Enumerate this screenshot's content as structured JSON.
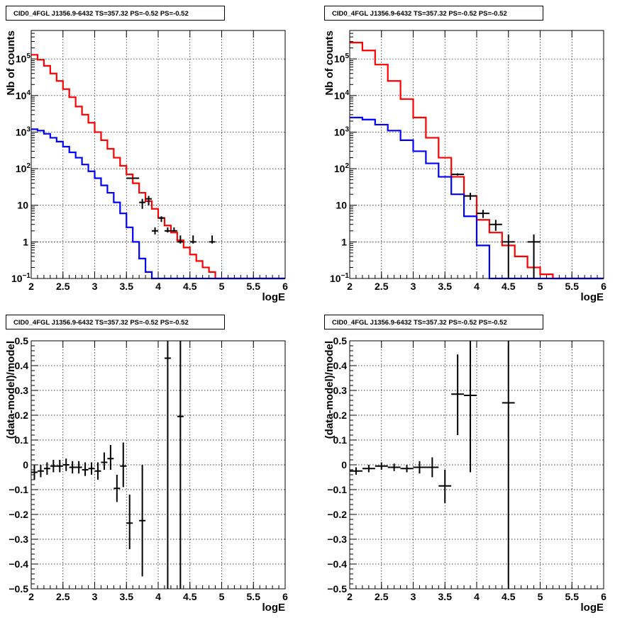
{
  "chart_data": [
    {
      "type": "line",
      "title": "CID0_4FGL J1356.9-6432 TS=357.32 PS=-0.52 PS=-0.52",
      "xlabel": "logE",
      "ylabel": "Nb of counts",
      "xlim": [
        2,
        6
      ],
      "ylim": [
        0.1,
        600000
      ],
      "yscale": "log",
      "grid": true,
      "xticks": [
        "2",
        "2.5",
        "3",
        "3.5",
        "4",
        "4.5",
        "5",
        "5.5",
        "6"
      ],
      "yticks": [
        {
          "v": 0.1,
          "label": "10",
          "sup": "−1"
        },
        {
          "v": 1,
          "label": "1",
          "sup": ""
        },
        {
          "v": 10,
          "label": "10",
          "sup": ""
        },
        {
          "v": 100,
          "label": "10",
          "sup": "2"
        },
        {
          "v": 1000,
          "label": "10",
          "sup": "3"
        },
        {
          "v": 10000,
          "label": "10",
          "sup": "4"
        },
        {
          "v": 100000,
          "label": "10",
          "sup": "5"
        }
      ],
      "series": [
        {
          "color": "#ff0000",
          "kind": "step",
          "edges": [
            2.0,
            2.1,
            2.2,
            2.3,
            2.4,
            2.5,
            2.6,
            2.7,
            2.8,
            2.9,
            3.0,
            3.1,
            3.2,
            3.3,
            3.4,
            3.5,
            3.6,
            3.7,
            3.8,
            3.9,
            4.0,
            4.1,
            4.2,
            4.3,
            4.4,
            4.5,
            4.6,
            4.7,
            4.8,
            4.9,
            5.0,
            5.1,
            5.2,
            5.3,
            5.4,
            5.5,
            5.6,
            5.7,
            5.8,
            5.9,
            6.0
          ],
          "values": [
            130000,
            95000,
            65000,
            40000,
            25000,
            15000,
            9000,
            5000,
            3000,
            1800,
            1000,
            600,
            350,
            200,
            120,
            70,
            40,
            22,
            13,
            8,
            4.5,
            2.8,
            1.8,
            1.1,
            0.7,
            0.45,
            0.3,
            0.2,
            0.15,
            0.1,
            0.1,
            0.1,
            0.1,
            0.1,
            0.1,
            0.1,
            0.1,
            0.1,
            0.1,
            0.1
          ]
        },
        {
          "color": "#0000ff",
          "kind": "step",
          "edges": [
            2.0,
            2.1,
            2.2,
            2.3,
            2.4,
            2.5,
            2.6,
            2.7,
            2.8,
            2.9,
            3.0,
            3.1,
            3.2,
            3.3,
            3.4,
            3.5,
            3.6,
            3.7,
            3.8,
            3.9,
            4.0,
            4.1,
            4.2,
            4.3,
            4.4,
            4.5,
            4.6,
            4.7,
            4.8,
            4.9,
            5.0,
            5.1,
            5.2,
            5.3,
            5.4,
            5.5,
            5.6,
            5.7,
            5.8,
            5.9,
            6.0
          ],
          "values": [
            1200,
            1100,
            900,
            700,
            550,
            400,
            280,
            200,
            130,
            85,
            55,
            35,
            22,
            12,
            6,
            2.5,
            1.0,
            0.35,
            0.15,
            0.1,
            0.1,
            0.1,
            0.1,
            0.1,
            0.1,
            0.1,
            0.1,
            0.1,
            0.1,
            0.1,
            0.1,
            0.1,
            0.1,
            0.1,
            0.1,
            0.1,
            0.1,
            0.1,
            0.1,
            0.1
          ]
        },
        {
          "color": "#000000",
          "kind": "errorbar",
          "xhalf": 0.05,
          "points": [
            [
              3.55,
              55,
              55,
              55
            ],
            [
              3.65,
              55,
              55,
              55
            ],
            [
              3.75,
              12,
              8,
              15
            ],
            [
              3.85,
              15,
              10,
              18
            ],
            [
              3.95,
              2,
              1.6,
              2.5
            ],
            [
              4.05,
              4.5,
              3.5,
              5
            ],
            [
              4.15,
              2,
              1.8,
              2.5
            ],
            [
              4.25,
              2,
              1.9,
              2.5
            ],
            [
              4.35,
              1,
              0.9,
              1.5
            ],
            [
              4.55,
              1,
              0.9,
              1.5
            ],
            [
              4.85,
              1,
              0.9,
              1.5
            ]
          ]
        }
      ]
    },
    {
      "type": "line",
      "title": "CID0_4FGL J1356.9-6432 TS=357.32 PS=-0.52 PS=-0.52",
      "xlabel": "logE",
      "ylabel": "Nb of counts",
      "xlim": [
        2,
        6
      ],
      "ylim": [
        0.1,
        600000
      ],
      "yscale": "log",
      "grid": true,
      "xticks": [
        "2",
        "2.5",
        "3",
        "3.5",
        "4",
        "4.5",
        "5",
        "5.5",
        "6"
      ],
      "yticks": [
        {
          "v": 0.1,
          "label": "10",
          "sup": "−1"
        },
        {
          "v": 1,
          "label": "1",
          "sup": ""
        },
        {
          "v": 10,
          "label": "10",
          "sup": ""
        },
        {
          "v": 100,
          "label": "10",
          "sup": "2"
        },
        {
          "v": 1000,
          "label": "10",
          "sup": "3"
        },
        {
          "v": 10000,
          "label": "10",
          "sup": "4"
        },
        {
          "v": 100000,
          "label": "10",
          "sup": "5"
        }
      ],
      "series": [
        {
          "color": "#ff0000",
          "kind": "step",
          "edges": [
            2.0,
            2.2,
            2.4,
            2.6,
            2.8,
            3.0,
            3.2,
            3.4,
            3.6,
            3.8,
            4.0,
            4.2,
            4.4,
            4.6,
            4.8,
            5.0,
            5.2,
            5.4,
            5.6,
            5.8,
            6.0
          ],
          "values": [
            280000,
            170000,
            70000,
            25000,
            8000,
            2500,
            700,
            200,
            60,
            18,
            4,
            1.8,
            0.8,
            0.4,
            0.2,
            0.13,
            0.1,
            0.1,
            0.1,
            0.1
          ]
        },
        {
          "color": "#0000ff",
          "kind": "step",
          "edges": [
            2.0,
            2.2,
            2.4,
            2.6,
            2.8,
            3.0,
            3.2,
            3.4,
            3.6,
            3.8,
            4.0,
            4.2,
            4.4,
            4.6,
            4.8,
            5.0,
            5.2,
            5.4,
            5.6,
            5.8,
            6.0
          ],
          "values": [
            2500,
            2200,
            1600,
            1100,
            600,
            300,
            140,
            60,
            20,
            5,
            0.8,
            0.1,
            0.1,
            0.1,
            0.1,
            0.1,
            0.1,
            0.1,
            0.1,
            0.1
          ]
        },
        {
          "color": "#000000",
          "kind": "errorbar",
          "xhalf": 0.1,
          "points": [
            [
              3.7,
              70,
              65,
              75
            ],
            [
              3.9,
              18,
              14,
              22
            ],
            [
              4.1,
              6,
              4.5,
              7.5
            ],
            [
              4.3,
              3,
              2,
              4
            ],
            [
              4.5,
              1,
              0.1,
              1.6
            ],
            [
              4.9,
              1,
              0.1,
              1.6
            ]
          ]
        }
      ]
    },
    {
      "type": "scatter",
      "title": "CID0_4FGL J1356.9-6432 TS=357.32 PS=-0.52 PS=-0.52",
      "xlabel": "logE",
      "ylabel": "(data-model)/model",
      "xlim": [
        2,
        6
      ],
      "ylim": [
        -0.5,
        0.5
      ],
      "yscale": "linear",
      "grid": true,
      "xticks": [
        "2",
        "2.5",
        "3",
        "3.5",
        "4",
        "4.5",
        "5",
        "5.5",
        "6"
      ],
      "yticks": [
        "−0.5",
        "−0.4",
        "−0.3",
        "−0.2",
        "−0.1",
        "0",
        "0.1",
        "0.2",
        "0.3",
        "0.4",
        "0.5"
      ],
      "series": [
        {
          "color": "#000000",
          "kind": "errorbar",
          "xhalf": 0.05,
          "points": [
            [
              2.05,
              -0.03,
              -0.06,
              0.0
            ],
            [
              2.15,
              -0.025,
              -0.05,
              0.0
            ],
            [
              2.25,
              -0.015,
              -0.04,
              0.01
            ],
            [
              2.35,
              -0.005,
              -0.03,
              0.02
            ],
            [
              2.45,
              -0.005,
              -0.03,
              0.02
            ],
            [
              2.55,
              0.0,
              -0.025,
              0.025
            ],
            [
              2.65,
              -0.01,
              -0.035,
              0.015
            ],
            [
              2.75,
              -0.01,
              -0.035,
              0.015
            ],
            [
              2.85,
              -0.02,
              -0.045,
              0.01
            ],
            [
              2.95,
              -0.015,
              -0.04,
              0.01
            ],
            [
              3.05,
              -0.025,
              -0.06,
              0.01
            ],
            [
              3.15,
              0.01,
              -0.02,
              0.05
            ],
            [
              3.25,
              0.025,
              -0.02,
              0.08
            ],
            [
              3.35,
              -0.095,
              -0.15,
              -0.04
            ],
            [
              3.45,
              -0.005,
              -0.09,
              0.09
            ],
            [
              3.55,
              -0.235,
              -0.34,
              -0.12
            ],
            [
              3.75,
              -0.225,
              -0.45,
              0.0
            ],
            [
              4.15,
              0.43,
              -0.5,
              0.5
            ],
            [
              4.35,
              0.195,
              -0.5,
              0.5
            ]
          ]
        }
      ]
    },
    {
      "type": "scatter",
      "title": "CID0_4FGL J1356.9-6432 TS=357.32 PS=-0.52 PS=-0.52",
      "xlabel": "logE",
      "ylabel": "(data-model)/model",
      "xlim": [
        2,
        6
      ],
      "ylim": [
        -0.5,
        0.5
      ],
      "yscale": "linear",
      "grid": true,
      "xticks": [
        "2",
        "2.5",
        "3",
        "3.5",
        "4",
        "4.5",
        "5",
        "5.5",
        "6"
      ],
      "yticks": [
        "−0.5",
        "−0.4",
        "−0.3",
        "−0.2",
        "−0.1",
        "0",
        "0.1",
        "0.2",
        "0.3",
        "0.4",
        "0.5"
      ],
      "series": [
        {
          "color": "#000000",
          "kind": "errorbar",
          "xhalf": 0.1,
          "points": [
            [
              2.1,
              -0.025,
              -0.04,
              -0.01
            ],
            [
              2.3,
              -0.015,
              -0.03,
              0.0
            ],
            [
              2.5,
              -0.005,
              -0.02,
              0.01
            ],
            [
              2.7,
              -0.01,
              -0.025,
              0.005
            ],
            [
              2.9,
              -0.015,
              -0.03,
              0.0
            ],
            [
              3.1,
              -0.01,
              -0.035,
              0.015
            ],
            [
              3.3,
              -0.01,
              -0.05,
              0.03
            ],
            [
              3.5,
              -0.085,
              -0.155,
              -0.02
            ],
            [
              3.7,
              0.285,
              0.12,
              0.445
            ],
            [
              3.9,
              0.28,
              -0.03,
              0.5
            ],
            [
              4.5,
              0.25,
              -0.5,
              0.5
            ]
          ]
        }
      ]
    }
  ]
}
